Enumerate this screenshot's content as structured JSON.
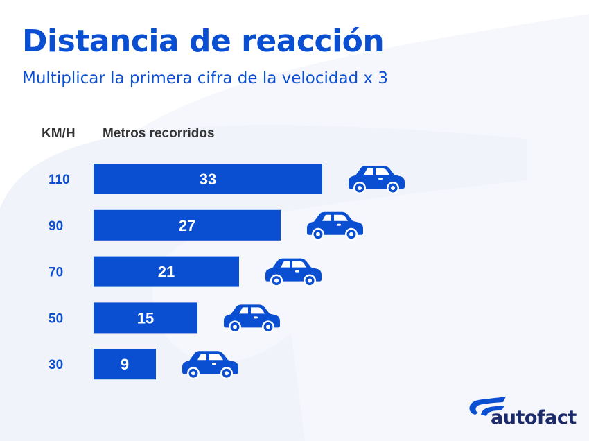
{
  "title": "Distancia de reacción",
  "subtitle": "Multiplicar la primera cifra de la velocidad x 3",
  "logo_text": "autofact",
  "colors": {
    "bar": "#0a4fd1",
    "label": "#0a4fd1",
    "header": "#333333",
    "logo": "#1b2a6b",
    "background_shape": "#f1f3fb"
  },
  "chart_data": {
    "type": "bar",
    "orientation": "horizontal",
    "xlabel": "Metros recorridos",
    "ylabel": "KM/H",
    "categories": [
      "110",
      "90",
      "70",
      "50",
      "30"
    ],
    "values": [
      33,
      27,
      21,
      15,
      9
    ],
    "data_labels": [
      "33",
      "27",
      "21",
      "15",
      "9"
    ],
    "grid": false,
    "bar_end_icon": "car-icon"
  }
}
